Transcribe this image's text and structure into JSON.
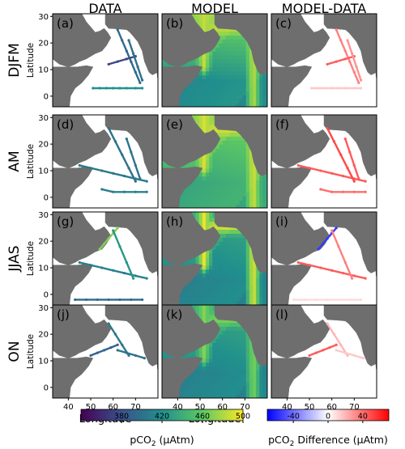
{
  "columns": [
    "DATA",
    "MODEL",
    "MODEL-DATA"
  ],
  "rows": [
    {
      "season": "DJFM",
      "panels": [
        "(a)",
        "(b)",
        "(c)"
      ]
    },
    {
      "season": "AM",
      "panels": [
        "(d)",
        "(e)",
        "(f)"
      ]
    },
    {
      "season": "JJAS",
      "panels": [
        "(g)",
        "(h)",
        "(i)"
      ]
    },
    {
      "season": "ON",
      "panels": [
        "(j)",
        "(k)",
        "(l)"
      ]
    }
  ],
  "axes": {
    "ylabel": "Latitude",
    "xlabel": "Longitude",
    "xticks": [
      40,
      50,
      60,
      70
    ],
    "yticks": [
      0,
      10,
      20,
      30
    ],
    "xlim": [
      33,
      80
    ],
    "ylim": [
      -4,
      31
    ]
  },
  "colorbars": [
    {
      "label_prefix": "pCO",
      "label_sub": "2",
      "label_suffix": " (μAtm)",
      "ticks": [
        380,
        420,
        460,
        500
      ],
      "range": [
        340,
        500
      ],
      "colormap": "viridis"
    },
    {
      "label_prefix": "pCO",
      "label_sub": "2",
      "label_suffix": " Difference (μAtm)",
      "ticks": [
        -40,
        0,
        40
      ],
      "tick_labels": [
        "-40",
        "0",
        "40"
      ],
      "range": [
        -70,
        70
      ],
      "colormap": "bwr"
    }
  ],
  "colors": {
    "land": "#6e6e6e",
    "ocean": "#ffffff",
    "frame": "#000000"
  },
  "chart_data": [
    {
      "type": "heatmap",
      "panel": "(a)",
      "season": "DJFM",
      "column": "DATA",
      "title": "",
      "xlabel": "",
      "ylabel": "Latitude",
      "xlim": [
        33,
        80
      ],
      "ylim": [
        -4,
        31
      ],
      "grid": false,
      "tracks": [
        {
          "lon": [
            51,
            54,
            57,
            60,
            63,
            66,
            70,
            73
          ],
          "lat": [
            3,
            3,
            3,
            3,
            3,
            3,
            3,
            3
          ],
          "value": 420
        },
        {
          "lon": [
            62,
            64,
            66,
            68,
            70,
            72
          ],
          "lat": [
            25,
            21,
            17,
            13,
            9,
            5
          ],
          "value": 395
        },
        {
          "lon": [
            58,
            62,
            66,
            70
          ],
          "lat": [
            12,
            13,
            14,
            15
          ],
          "value": 375
        },
        {
          "lon": [
            67,
            69,
            71,
            73
          ],
          "lat": [
            21,
            16,
            11,
            6
          ],
          "value": 400
        }
      ]
    },
    {
      "type": "heatmap",
      "panel": "(b)",
      "season": "DJFM",
      "column": "MODEL",
      "title": "",
      "xlabel": "",
      "ylabel": "",
      "xlim": [
        33,
        80
      ],
      "ylim": [
        -4,
        31
      ],
      "grid": false,
      "field": {
        "base": 420,
        "north_high": 470,
        "coastal_high": 485
      }
    },
    {
      "type": "heatmap",
      "panel": "(c)",
      "season": "DJFM",
      "column": "MODEL-DATA",
      "title": "",
      "xlabel": "",
      "ylabel": "",
      "xlim": [
        33,
        80
      ],
      "ylim": [
        -4,
        31
      ],
      "grid": false,
      "tracks": [
        {
          "lon": [
            51,
            54,
            57,
            60,
            63,
            66,
            70,
            73
          ],
          "lat": [
            3,
            3,
            3,
            3,
            3,
            3,
            3,
            3
          ],
          "value": 15
        },
        {
          "lon": [
            62,
            64,
            66,
            68,
            70,
            72
          ],
          "lat": [
            25,
            21,
            17,
            13,
            9,
            5
          ],
          "value": 35
        },
        {
          "lon": [
            58,
            62,
            66,
            70
          ],
          "lat": [
            12,
            13,
            14,
            15
          ],
          "value": 45
        },
        {
          "lon": [
            67,
            69,
            71,
            73
          ],
          "lat": [
            21,
            16,
            11,
            6
          ],
          "value": 30
        }
      ]
    },
    {
      "type": "heatmap",
      "panel": "(d)",
      "season": "AM",
      "column": "DATA",
      "title": "",
      "xlabel": "",
      "ylabel": "Latitude",
      "xlim": [
        33,
        80
      ],
      "ylim": [
        -4,
        31
      ],
      "grid": false,
      "tracks": [
        {
          "lon": [
            45,
            50,
            55,
            60,
            65,
            70,
            75
          ],
          "lat": [
            12,
            11,
            10,
            9,
            8,
            7,
            6
          ],
          "value": 405
        },
        {
          "lon": [
            55,
            60,
            65,
            70,
            75
          ],
          "lat": [
            3,
            2,
            2,
            2,
            2
          ],
          "value": 410
        },
        {
          "lon": [
            58,
            61,
            64,
            67,
            70
          ],
          "lat": [
            26,
            21,
            16,
            11,
            6
          ],
          "value": 400
        },
        {
          "lon": [
            66,
            68,
            70,
            72
          ],
          "lat": [
            22,
            17,
            12,
            7
          ],
          "value": 402
        }
      ]
    },
    {
      "type": "heatmap",
      "panel": "(e)",
      "season": "AM",
      "column": "MODEL",
      "title": "",
      "xlabel": "",
      "ylabel": "",
      "xlim": [
        33,
        80
      ],
      "ylim": [
        -4,
        31
      ],
      "grid": false,
      "field": {
        "base": 440,
        "north_high": 470,
        "coastal_high": 490
      }
    },
    {
      "type": "heatmap",
      "panel": "(f)",
      "season": "AM",
      "column": "MODEL-DATA",
      "title": "",
      "xlabel": "",
      "ylabel": "",
      "xlim": [
        33,
        80
      ],
      "ylim": [
        -4,
        31
      ],
      "grid": false,
      "tracks": [
        {
          "lon": [
            45,
            50,
            55,
            60,
            65,
            70,
            75
          ],
          "lat": [
            12,
            11,
            10,
            9,
            8,
            7,
            6
          ],
          "value": 45
        },
        {
          "lon": [
            55,
            60,
            65,
            70,
            75
          ],
          "lat": [
            3,
            2,
            2,
            2,
            2
          ],
          "value": 40
        },
        {
          "lon": [
            58,
            61,
            64,
            67,
            70
          ],
          "lat": [
            26,
            21,
            16,
            11,
            6
          ],
          "value": 50
        },
        {
          "lon": [
            66,
            68,
            70,
            72
          ],
          "lat": [
            22,
            17,
            12,
            7
          ],
          "value": 45
        }
      ]
    },
    {
      "type": "heatmap",
      "panel": "(g)",
      "season": "JJAS",
      "column": "DATA",
      "title": "",
      "xlabel": "",
      "ylabel": "Latitude",
      "xlim": [
        33,
        80
      ],
      "ylim": [
        -4,
        31
      ],
      "grid": false,
      "tracks": [
        {
          "lon": [
            54,
            56,
            58,
            60,
            62
          ],
          "lat": [
            17,
            19,
            21,
            23,
            25
          ],
          "value": 470
        },
        {
          "lon": [
            45,
            50,
            55,
            60,
            65,
            70,
            75
          ],
          "lat": [
            12,
            11,
            10,
            9,
            8,
            7,
            6
          ],
          "value": 410
        },
        {
          "lon": [
            43,
            48,
            53,
            58,
            63,
            68,
            73
          ],
          "lat": [
            -2,
            -2,
            -2,
            -2,
            -2,
            -2,
            -2
          ],
          "value": 395
        },
        {
          "lon": [
            60,
            63,
            66,
            69
          ],
          "lat": [
            24,
            18,
            12,
            6
          ],
          "value": 425
        }
      ]
    },
    {
      "type": "heatmap",
      "panel": "(h)",
      "season": "JJAS",
      "column": "MODEL",
      "title": "",
      "xlabel": "",
      "ylabel": "",
      "xlim": [
        33,
        80
      ],
      "ylim": [
        -4,
        31
      ],
      "grid": false,
      "field": {
        "base": 415,
        "north_high": 440,
        "coastal_high": 495
      }
    },
    {
      "type": "heatmap",
      "panel": "(i)",
      "season": "JJAS",
      "column": "MODEL-DATA",
      "title": "",
      "xlabel": "",
      "ylabel": "",
      "xlim": [
        33,
        80
      ],
      "ylim": [
        -4,
        31
      ],
      "grid": false,
      "tracks": [
        {
          "lon": [
            54,
            56,
            58,
            60,
            62
          ],
          "lat": [
            17,
            19,
            21,
            23,
            25
          ],
          "value": -55
        },
        {
          "lon": [
            45,
            50,
            55,
            60,
            65,
            70,
            75
          ],
          "lat": [
            12,
            11,
            10,
            9,
            8,
            7,
            6
          ],
          "value": 45
        },
        {
          "lon": [
            43,
            48,
            53,
            58,
            63,
            68,
            73
          ],
          "lat": [
            -2,
            -2,
            -2,
            -2,
            -2,
            -2,
            -2
          ],
          "value": 10
        },
        {
          "lon": [
            60,
            63,
            66,
            69
          ],
          "lat": [
            24,
            18,
            12,
            6
          ],
          "value": 35
        }
      ]
    },
    {
      "type": "heatmap",
      "panel": "(j)",
      "season": "ON",
      "column": "DATA",
      "title": "",
      "xlabel": "",
      "ylabel": "Latitude",
      "xlim": [
        33,
        80
      ],
      "ylim": [
        -4,
        31
      ],
      "grid": false,
      "tracks": [
        {
          "lon": [
            58,
            61,
            64,
            67
          ],
          "lat": [
            24,
            20,
            16,
            12
          ],
          "value": 405
        },
        {
          "lon": [
            50,
            53,
            56,
            59,
            62
          ],
          "lat": [
            12,
            13,
            14,
            15,
            16
          ],
          "value": 390
        },
        {
          "lon": [
            62,
            66,
            70,
            74
          ],
          "lat": [
            14,
            13,
            12,
            11
          ],
          "value": 400
        }
      ]
    },
    {
      "type": "heatmap",
      "panel": "(k)",
      "season": "ON",
      "column": "MODEL",
      "title": "",
      "xlabel": "",
      "ylabel": "",
      "xlim": [
        33,
        80
      ],
      "ylim": [
        -4,
        31
      ],
      "grid": false,
      "field": {
        "base": 415,
        "north_high": 440,
        "coastal_high": 470
      }
    },
    {
      "type": "heatmap",
      "panel": "(l)",
      "season": "ON",
      "column": "MODEL-DATA",
      "title": "",
      "xlabel": "",
      "ylabel": "",
      "xlim": [
        33,
        80
      ],
      "ylim": [
        -4,
        31
      ],
      "grid": false,
      "tracks": [
        {
          "lon": [
            58,
            61,
            64,
            67
          ],
          "lat": [
            24,
            20,
            16,
            12
          ],
          "value": 20
        },
        {
          "lon": [
            50,
            53,
            56,
            59,
            62
          ],
          "lat": [
            12,
            13,
            14,
            15,
            16
          ],
          "value": 45
        },
        {
          "lon": [
            62,
            66,
            70,
            74
          ],
          "lat": [
            14,
            13,
            12,
            11
          ],
          "value": 15
        }
      ]
    }
  ]
}
